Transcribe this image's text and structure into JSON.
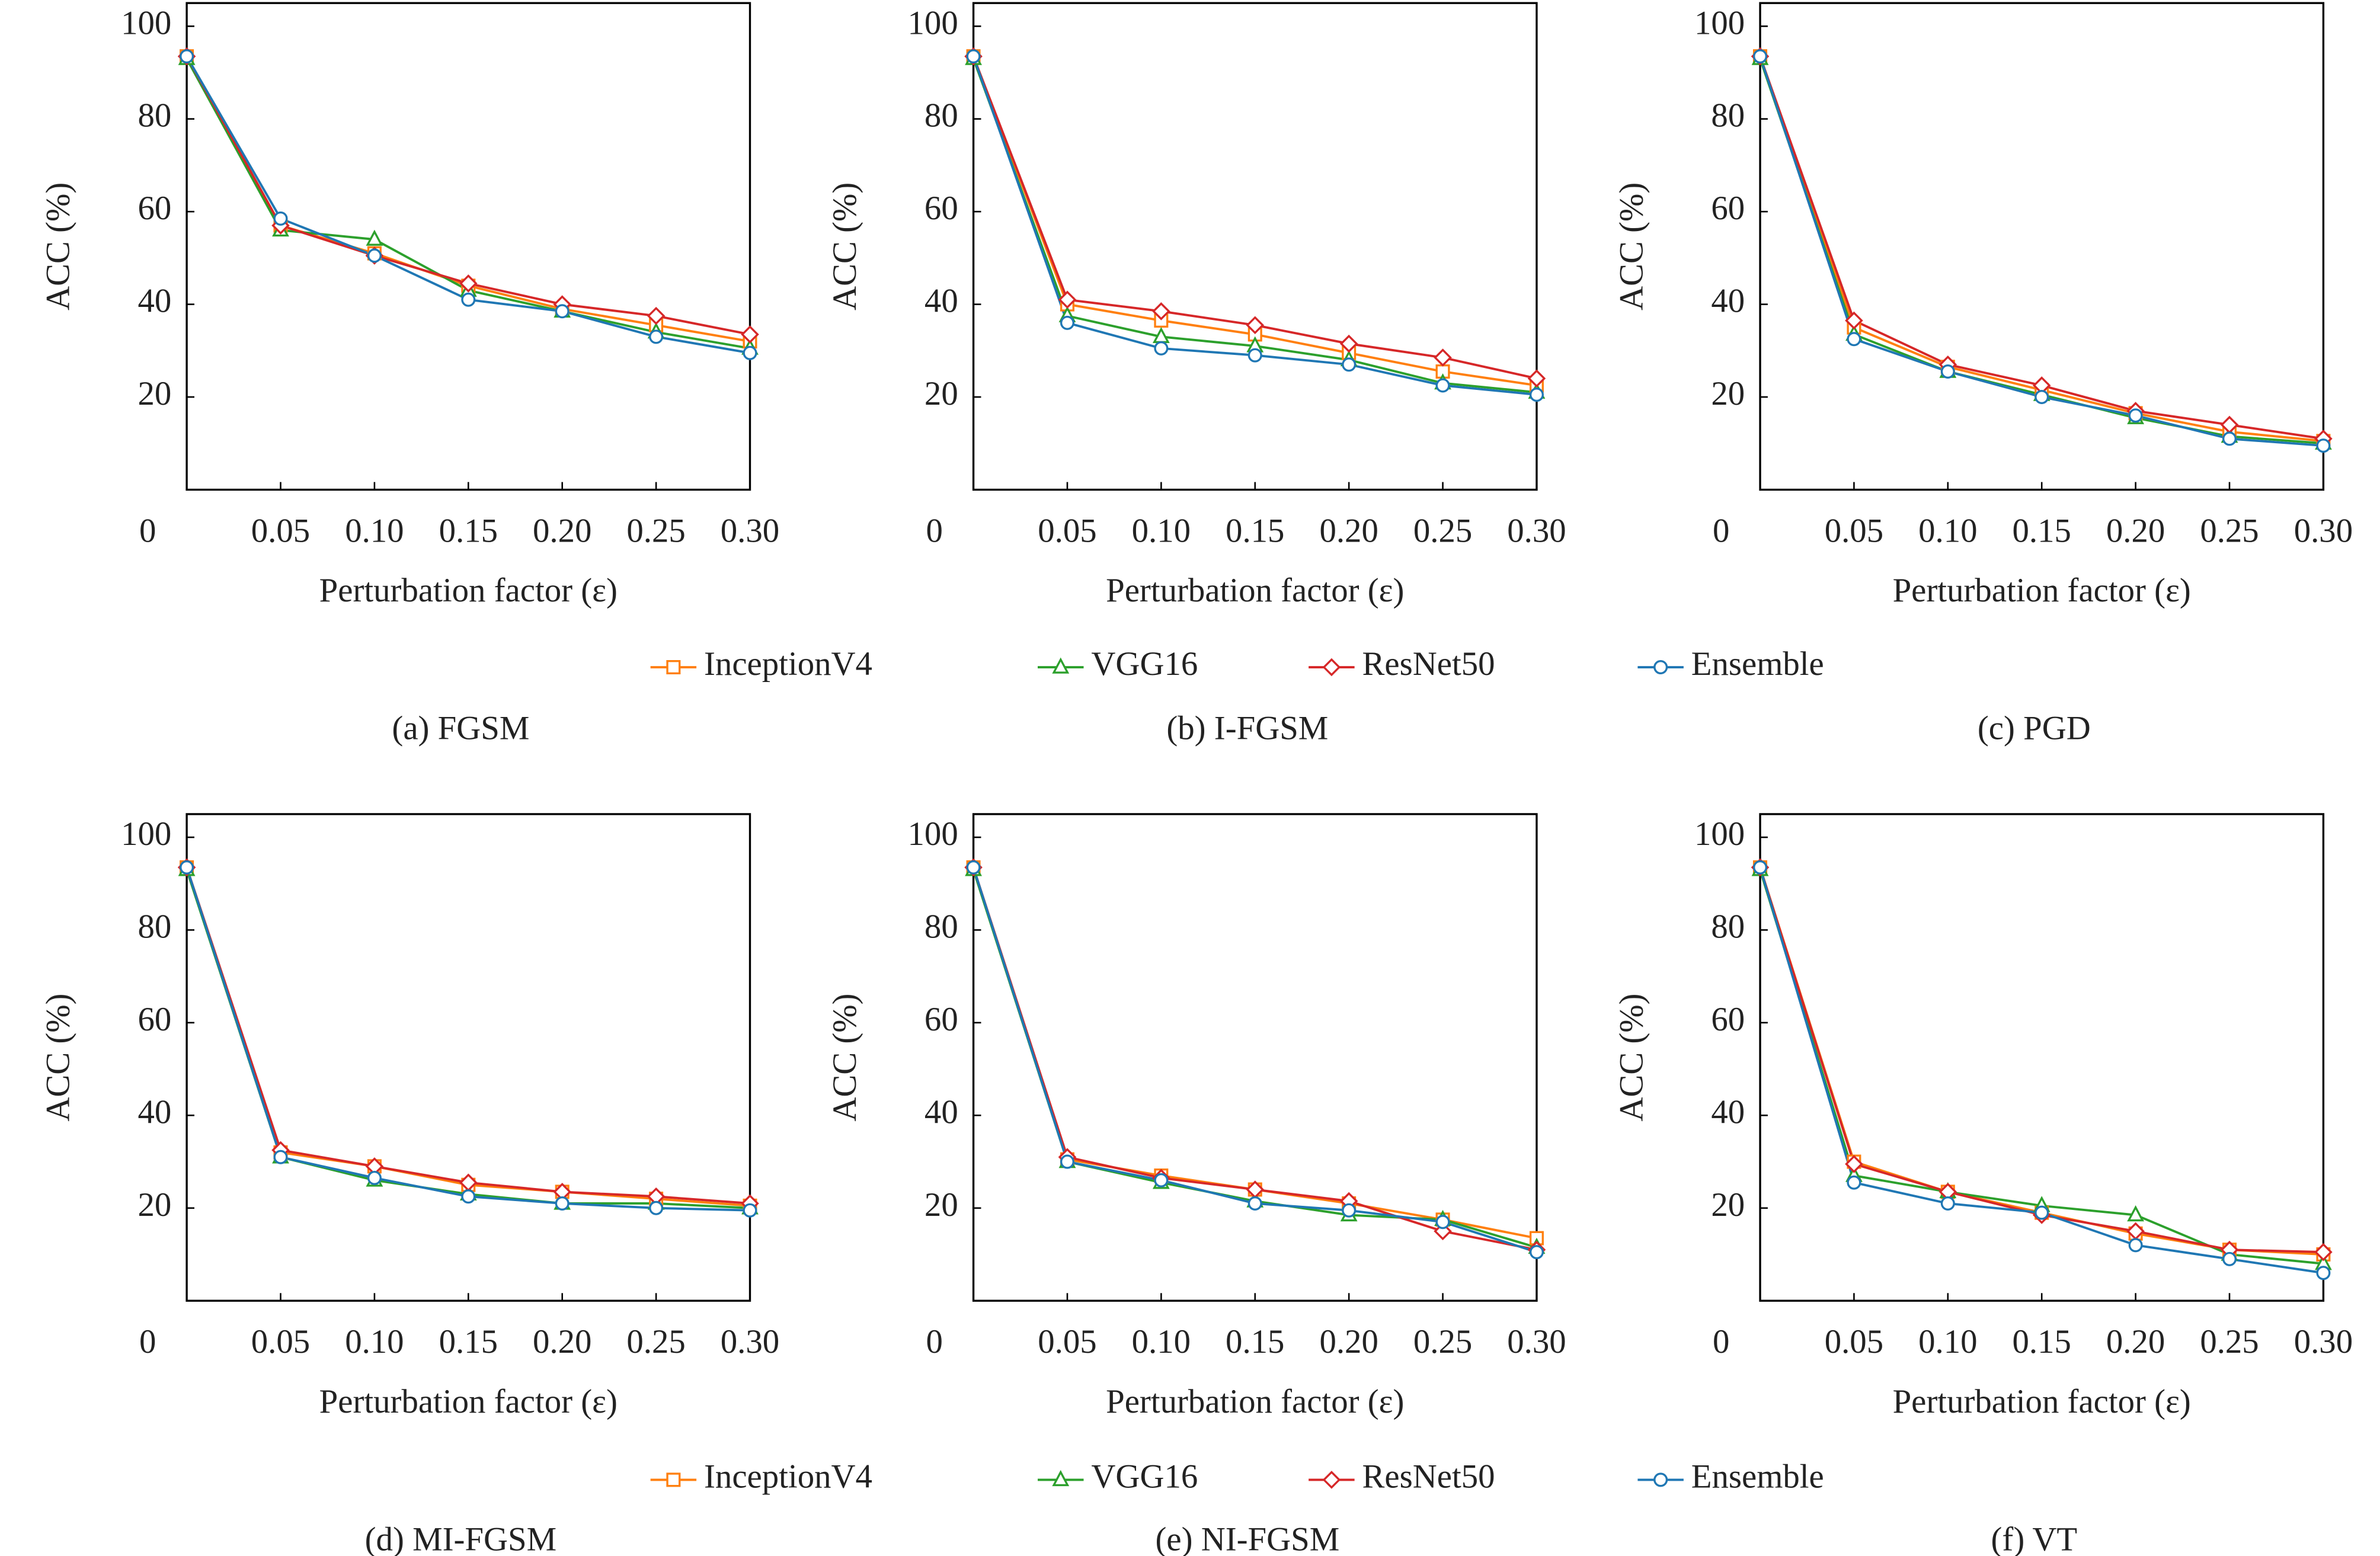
{
  "chart_data": [
    {
      "type": "line",
      "caption": "(a) FGSM",
      "x_label": "Perturbation factor (ε)",
      "y_label": "ACC (%)",
      "x": [
        0,
        0.05,
        0.1,
        0.15,
        0.2,
        0.25,
        0.3
      ],
      "xlim": [
        0,
        0.3
      ],
      "ylim": [
        0,
        105
      ],
      "xticks": [
        0.05,
        {
          "value": 0.1,
          "label": "0.10"
        },
        0.15,
        {
          "value": 0.2,
          "label": "0.20"
        },
        0.25,
        {
          "value": 0.3,
          "label": "0.30"
        }
      ],
      "yticks": [
        0,
        20,
        40,
        60,
        80,
        100
      ],
      "series": [
        {
          "name": "InceptionV4",
          "color": "#ff7f0e",
          "marker": "square",
          "values": [
            93.5,
            57,
            51,
            44,
            39,
            35.5,
            32
          ]
        },
        {
          "name": "VGG16",
          "color": "#2ca02c",
          "marker": "triangle",
          "values": [
            93,
            56,
            54,
            43,
            38.5,
            34,
            30.5
          ]
        },
        {
          "name": "ResNet50",
          "color": "#d62728",
          "marker": "diamond",
          "values": [
            93.5,
            57,
            50.5,
            44.5,
            40,
            37.5,
            33.5
          ]
        },
        {
          "name": "Ensemble",
          "color": "#1f77b4",
          "marker": "circle",
          "values": [
            93.5,
            58.5,
            50.5,
            41,
            38.5,
            33,
            29.5
          ]
        }
      ]
    },
    {
      "type": "line",
      "caption": "(b) I-FGSM",
      "x_label": "Perturbation factor (ε)",
      "y_label": "ACC (%)",
      "x": [
        0,
        0.05,
        0.1,
        0.15,
        0.2,
        0.25,
        0.3
      ],
      "xlim": [
        0,
        0.3
      ],
      "ylim": [
        0,
        105
      ],
      "xticks": [
        0.05,
        {
          "value": 0.1,
          "label": "0.10"
        },
        0.15,
        {
          "value": 0.2,
          "label": "0.20"
        },
        0.25,
        {
          "value": 0.3,
          "label": "0.30"
        }
      ],
      "yticks": [
        0,
        20,
        40,
        60,
        80,
        100
      ],
      "series": [
        {
          "name": "InceptionV4",
          "color": "#ff7f0e",
          "marker": "square",
          "values": [
            93.5,
            40,
            36.5,
            33.5,
            29.5,
            25.5,
            22.5
          ]
        },
        {
          "name": "VGG16",
          "color": "#2ca02c",
          "marker": "triangle",
          "values": [
            93,
            37.5,
            33,
            31,
            28,
            23,
            21
          ]
        },
        {
          "name": "ResNet50",
          "color": "#d62728",
          "marker": "diamond",
          "values": [
            93.5,
            41,
            38.5,
            35.5,
            31.5,
            28.5,
            24
          ]
        },
        {
          "name": "Ensemble",
          "color": "#1f77b4",
          "marker": "circle",
          "values": [
            93.5,
            36,
            30.5,
            29,
            27,
            22.5,
            20.5
          ]
        }
      ]
    },
    {
      "type": "line",
      "caption": "(c) PGD",
      "x_label": "Perturbation factor (ε)",
      "y_label": "ACC (%)",
      "x": [
        0,
        0.05,
        0.1,
        0.15,
        0.2,
        0.25,
        0.3
      ],
      "xlim": [
        0,
        0.3
      ],
      "ylim": [
        0,
        105
      ],
      "xticks": [
        0.05,
        {
          "value": 0.1,
          "label": "0.10"
        },
        0.15,
        {
          "value": 0.2,
          "label": "0.20"
        },
        0.25,
        {
          "value": 0.3,
          "label": "0.30"
        }
      ],
      "yticks": [
        0,
        20,
        40,
        60,
        80,
        100
      ],
      "series": [
        {
          "name": "InceptionV4",
          "color": "#ff7f0e",
          "marker": "square",
          "values": [
            93.5,
            35,
            26.5,
            21.5,
            16.5,
            12.5,
            10.5
          ]
        },
        {
          "name": "VGG16",
          "color": "#2ca02c",
          "marker": "triangle",
          "values": [
            93,
            33.5,
            25.5,
            20.5,
            15.5,
            11.5,
            10
          ]
        },
        {
          "name": "ResNet50",
          "color": "#d62728",
          "marker": "diamond",
          "values": [
            93.5,
            36.5,
            27,
            22.5,
            17,
            14,
            11
          ]
        },
        {
          "name": "Ensemble",
          "color": "#1f77b4",
          "marker": "circle",
          "values": [
            93.5,
            32.5,
            25.5,
            20,
            16,
            11,
            9.5
          ]
        }
      ]
    },
    {
      "type": "line",
      "caption": "(d) MI-FGSM",
      "x_label": "Perturbation factor (ε)",
      "y_label": "ACC (%)",
      "x": [
        0,
        0.05,
        0.1,
        0.15,
        0.2,
        0.25,
        0.3
      ],
      "xlim": [
        0,
        0.3
      ],
      "ylim": [
        0,
        105
      ],
      "xticks": [
        0.05,
        {
          "value": 0.1,
          "label": "0.10"
        },
        0.15,
        {
          "value": 0.2,
          "label": "0.20"
        },
        0.25,
        {
          "value": 0.3,
          "label": "0.30"
        }
      ],
      "yticks": [
        0,
        20,
        40,
        60,
        80,
        100
      ],
      "series": [
        {
          "name": "InceptionV4",
          "color": "#ff7f0e",
          "marker": "square",
          "values": [
            93.5,
            32,
            29,
            25,
            23.5,
            22,
            20.5
          ]
        },
        {
          "name": "VGG16",
          "color": "#2ca02c",
          "marker": "triangle",
          "values": [
            93,
            31,
            26,
            23,
            21,
            21,
            20
          ]
        },
        {
          "name": "ResNet50",
          "color": "#d62728",
          "marker": "diamond",
          "values": [
            93.5,
            32.5,
            29,
            25.5,
            23.5,
            22.5,
            21
          ]
        },
        {
          "name": "Ensemble",
          "color": "#1f77b4",
          "marker": "circle",
          "values": [
            93.5,
            31,
            26.5,
            22.5,
            21,
            20,
            19.5
          ]
        }
      ]
    },
    {
      "type": "line",
      "caption": "(e) NI-FGSM",
      "x_label": "Perturbation factor (ε)",
      "y_label": "ACC (%)",
      "x": [
        0,
        0.05,
        0.1,
        0.15,
        0.2,
        0.25,
        0.3
      ],
      "xlim": [
        0,
        0.3
      ],
      "ylim": [
        0,
        105
      ],
      "xticks": [
        0.05,
        {
          "value": 0.1,
          "label": "0.10"
        },
        0.15,
        {
          "value": 0.2,
          "label": "0.20"
        },
        0.25,
        {
          "value": 0.3,
          "label": "0.30"
        }
      ],
      "yticks": [
        0,
        20,
        40,
        60,
        80,
        100
      ],
      "series": [
        {
          "name": "InceptionV4",
          "color": "#ff7f0e",
          "marker": "square",
          "values": [
            93.5,
            30.5,
            27,
            24,
            21,
            17.5,
            13.5
          ]
        },
        {
          "name": "VGG16",
          "color": "#2ca02c",
          "marker": "triangle",
          "values": [
            93,
            30,
            25.5,
            21.5,
            18.5,
            17.5,
            11.5
          ]
        },
        {
          "name": "ResNet50",
          "color": "#d62728",
          "marker": "diamond",
          "values": [
            93.5,
            31,
            26.5,
            24,
            21.5,
            15,
            11
          ]
        },
        {
          "name": "Ensemble",
          "color": "#1f77b4",
          "marker": "circle",
          "values": [
            93.5,
            30,
            26,
            21,
            19.5,
            17,
            10.5
          ]
        }
      ]
    },
    {
      "type": "line",
      "caption": "(f) VT",
      "x_label": "Perturbation factor (ε)",
      "y_label": "ACC (%)",
      "x": [
        0,
        0.05,
        0.1,
        0.15,
        0.2,
        0.25,
        0.3
      ],
      "xlim": [
        0,
        0.3
      ],
      "ylim": [
        0,
        105
      ],
      "xticks": [
        0.05,
        {
          "value": 0.1,
          "label": "0.10"
        },
        0.15,
        {
          "value": 0.2,
          "label": "0.20"
        },
        0.25,
        {
          "value": 0.3,
          "label": "0.30"
        }
      ],
      "yticks": [
        0,
        20,
        40,
        60,
        80,
        100
      ],
      "series": [
        {
          "name": "InceptionV4",
          "color": "#ff7f0e",
          "marker": "square",
          "values": [
            93.5,
            30,
            23.5,
            19,
            14.5,
            11,
            10
          ]
        },
        {
          "name": "VGG16",
          "color": "#2ca02c",
          "marker": "triangle",
          "values": [
            93,
            27,
            23.5,
            20.5,
            18.5,
            10,
            8
          ]
        },
        {
          "name": "ResNet50",
          "color": "#d62728",
          "marker": "diamond",
          "values": [
            93.5,
            29.5,
            23.5,
            18.5,
            15,
            11,
            10.5
          ]
        },
        {
          "name": "Ensemble",
          "color": "#1f77b4",
          "marker": "circle",
          "values": [
            93.5,
            25.5,
            21,
            19,
            12,
            9,
            6
          ]
        }
      ]
    }
  ]
}
